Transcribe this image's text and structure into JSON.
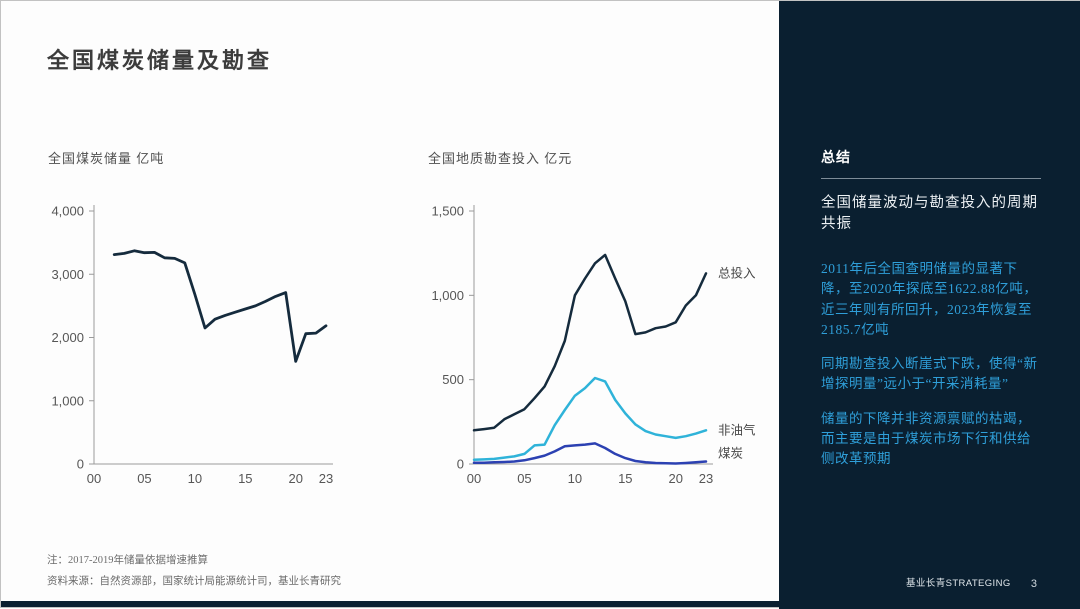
{
  "page": {
    "title": "全国煤炭储量及勘查",
    "footnote": "注：2017-2019年储量依据增速推算",
    "source": "资料来源：自然资源部，国家统计局能源统计司，基业长青研究",
    "brand": "基业长青STRATEGING",
    "page_number": "3"
  },
  "colors": {
    "sidebar_bg": "#0a1f30",
    "accent_blue": "#2f9fd9",
    "line_dark_navy": "#152b3d",
    "line_cyan": "#2fb3d9",
    "line_royal_blue": "#2c41b2",
    "axis_gray": "#9a9a9a"
  },
  "sidebar": {
    "heading": "总结",
    "subtitle": "全国储量波动与勘查投入的周期共振",
    "bullets": [
      "2011年后全国查明储量的显著下降，至2020年探底至1622.88亿吨，近三年则有所回升，2023年恢复至2185.7亿吨",
      "同期勘查投入断崖式下跌，使得“新增探明量”远小于“开采消耗量”",
      "储量的下降并非资源禀赋的枯竭，而主要是由于煤炭市场下行和供给侧改革预期"
    ]
  },
  "chart_data": [
    {
      "type": "line",
      "title": "全国煤炭储量 亿吨",
      "xlabel": "",
      "ylabel": "亿吨",
      "xrange": [
        2000,
        2023
      ],
      "ylim": [
        0,
        4000
      ],
      "grid": false,
      "legend_position": "none",
      "show_series_labels": false,
      "x": [
        2002,
        2003,
        2004,
        2005,
        2006,
        2007,
        2008,
        2009,
        2010,
        2011,
        2012,
        2013,
        2014,
        2015,
        2016,
        2017,
        2018,
        2019,
        2020,
        2021,
        2022,
        2023
      ],
      "series": [
        {
          "name": "煤炭储量",
          "color": "#152b3d",
          "width": 2.8,
          "label_dy": 0,
          "values": [
            3310,
            3330,
            3370,
            3340,
            3345,
            3260,
            3250,
            3180,
            2680,
            2150,
            2290,
            2350,
            2400,
            2450,
            2500,
            2570,
            2650,
            2710,
            1622.88,
            2060,
            2070,
            2185.7
          ]
        }
      ],
      "yticks": [
        {
          "v": 0,
          "label": "0"
        },
        {
          "v": 1000,
          "label": "1,000"
        },
        {
          "v": 2000,
          "label": "2,000"
        },
        {
          "v": 3000,
          "label": "3,000"
        },
        {
          "v": 4000,
          "label": "4,000"
        }
      ],
      "xticks": [
        {
          "v": 2000,
          "label": "00"
        },
        {
          "v": 2005,
          "label": "05"
        },
        {
          "v": 2010,
          "label": "10"
        },
        {
          "v": 2015,
          "label": "15"
        },
        {
          "v": 2020,
          "label": "20"
        },
        {
          "v": 2023,
          "label": "23"
        }
      ]
    },
    {
      "type": "line",
      "title": "全国地质勘查投入 亿元",
      "xlabel": "",
      "ylabel": "亿元",
      "xrange": [
        2000,
        2023
      ],
      "ylim": [
        0,
        1500
      ],
      "grid": false,
      "legend_position": "right-of-line",
      "show_series_labels": true,
      "x": [
        2000,
        2001,
        2002,
        2003,
        2004,
        2005,
        2006,
        2007,
        2008,
        2009,
        2010,
        2011,
        2012,
        2013,
        2014,
        2015,
        2016,
        2017,
        2018,
        2019,
        2020,
        2021,
        2022,
        2023
      ],
      "series": [
        {
          "name": "总投入",
          "color": "#152b3d",
          "width": 2.5,
          "label_dy": 0,
          "values": [
            200,
            207,
            215,
            265,
            295,
            325,
            390,
            460,
            580,
            730,
            1000,
            1100,
            1190,
            1240,
            1100,
            965,
            770,
            780,
            805,
            815,
            840,
            940,
            1000,
            1130
          ]
        },
        {
          "name": "非油气",
          "color": "#2fb3d9",
          "width": 2.5,
          "label_dy": 0,
          "values": [
            25,
            27,
            30,
            38,
            45,
            60,
            110,
            115,
            230,
            320,
            405,
            450,
            510,
            490,
            380,
            300,
            235,
            195,
            175,
            165,
            155,
            165,
            180,
            200
          ]
        },
        {
          "name": "煤炭",
          "color": "#2c41b2",
          "width": 2.5,
          "label_dy": -8,
          "values": [
            8,
            8,
            10,
            12,
            15,
            22,
            35,
            50,
            75,
            105,
            110,
            115,
            122,
            95,
            60,
            35,
            18,
            10,
            6,
            4,
            3,
            6,
            10,
            15
          ]
        }
      ],
      "yticks": [
        {
          "v": 0,
          "label": "0"
        },
        {
          "v": 500,
          "label": "500"
        },
        {
          "v": 1000,
          "label": "1,000"
        },
        {
          "v": 1500,
          "label": "1,500"
        }
      ],
      "xticks": [
        {
          "v": 2000,
          "label": "00"
        },
        {
          "v": 2005,
          "label": "05"
        },
        {
          "v": 2010,
          "label": "10"
        },
        {
          "v": 2015,
          "label": "15"
        },
        {
          "v": 2020,
          "label": "20"
        },
        {
          "v": 2023,
          "label": "23"
        }
      ]
    }
  ]
}
